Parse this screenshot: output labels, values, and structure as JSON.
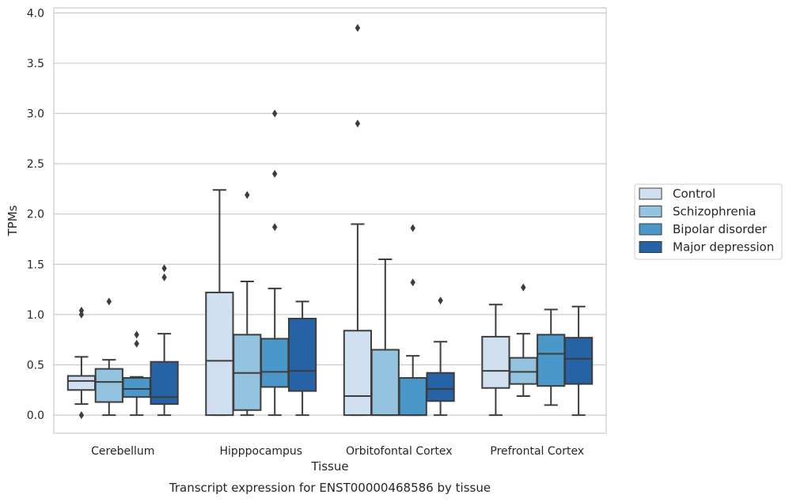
{
  "chart_data": {
    "type": "box",
    "title": "",
    "caption": "Transcript expression for ENST00000468586 by tissue",
    "xlabel": "Tissue",
    "ylabel": "TPMs",
    "ylim": [
      -0.18,
      4.05
    ],
    "yticks": [
      "0.0",
      "0.5",
      "1.0",
      "1.5",
      "2.0",
      "2.5",
      "3.0",
      "3.5",
      "4.0"
    ],
    "grid": true,
    "legend_position": "right",
    "categories": [
      "Cerebellum",
      "Hipppocampus",
      "Orbitofontal Cortex",
      "Prefrontal Cortex"
    ],
    "series": [
      {
        "name": "Control",
        "color": "#d0e0f1",
        "boxes": [
          {
            "whislo": 0.11,
            "q1": 0.25,
            "med": 0.34,
            "q3": 0.39,
            "whishi": 0.58,
            "fliers": [
              1.04,
              1.0,
              0.0
            ]
          },
          {
            "whislo": 0.0,
            "q1": 0.0,
            "med": 0.54,
            "q3": 1.22,
            "whishi": 2.24,
            "fliers": []
          },
          {
            "whislo": 0.0,
            "q1": 0.0,
            "med": 0.19,
            "q3": 0.84,
            "whishi": 1.9,
            "fliers": [
              3.85,
              2.9
            ]
          },
          {
            "whislo": 0.0,
            "q1": 0.27,
            "med": 0.44,
            "q3": 0.78,
            "whishi": 1.1,
            "fliers": []
          }
        ]
      },
      {
        "name": "Schizophrenia",
        "color": "#94c3df",
        "boxes": [
          {
            "whislo": 0.0,
            "q1": 0.13,
            "med": 0.33,
            "q3": 0.46,
            "whishi": 0.55,
            "fliers": [
              1.13
            ]
          },
          {
            "whislo": 0.0,
            "q1": 0.05,
            "med": 0.42,
            "q3": 0.8,
            "whishi": 1.33,
            "fliers": [
              2.19
            ]
          },
          {
            "whislo": 0.0,
            "q1": 0.0,
            "med": 0.0,
            "q3": 0.65,
            "whishi": 1.55,
            "fliers": []
          },
          {
            "whislo": 0.19,
            "q1": 0.31,
            "med": 0.43,
            "q3": 0.57,
            "whishi": 0.81,
            "fliers": [
              1.27
            ]
          }
        ]
      },
      {
        "name": "Bipolar disorder",
        "color": "#4a98c9",
        "boxes": [
          {
            "whislo": 0.0,
            "q1": 0.18,
            "med": 0.26,
            "q3": 0.37,
            "whishi": 0.38,
            "fliers": [
              0.8,
              0.71
            ]
          },
          {
            "whislo": 0.0,
            "q1": 0.28,
            "med": 0.43,
            "q3": 0.76,
            "whishi": 1.26,
            "fliers": [
              3.0,
              2.4,
              1.87
            ]
          },
          {
            "whislo": 0.0,
            "q1": 0.0,
            "med": 0.0,
            "q3": 0.37,
            "whishi": 0.59,
            "fliers": [
              1.86,
              1.32
            ]
          },
          {
            "whislo": 0.1,
            "q1": 0.29,
            "med": 0.61,
            "q3": 0.8,
            "whishi": 1.05,
            "fliers": []
          }
        ]
      },
      {
        "name": "Major depression",
        "color": "#2563a6",
        "boxes": [
          {
            "whislo": 0.0,
            "q1": 0.11,
            "med": 0.18,
            "q3": 0.53,
            "whishi": 0.81,
            "fliers": [
              1.46,
              1.37
            ]
          },
          {
            "whislo": 0.0,
            "q1": 0.24,
            "med": 0.44,
            "q3": 0.96,
            "whishi": 1.13,
            "fliers": []
          },
          {
            "whislo": 0.0,
            "q1": 0.14,
            "med": 0.26,
            "q3": 0.42,
            "whishi": 0.73,
            "fliers": [
              1.14
            ]
          },
          {
            "whislo": 0.0,
            "q1": 0.31,
            "med": 0.56,
            "q3": 0.77,
            "whishi": 1.08,
            "fliers": []
          }
        ]
      }
    ]
  }
}
